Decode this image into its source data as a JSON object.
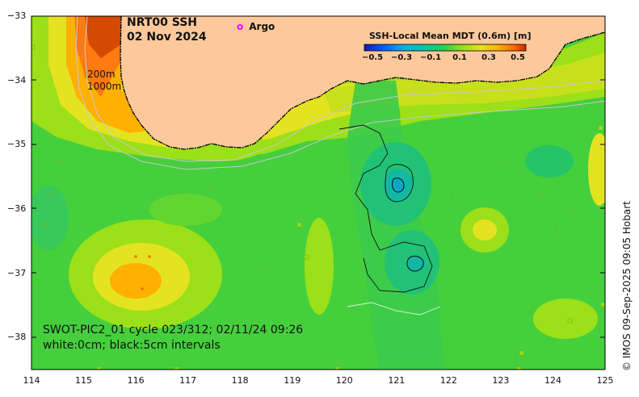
{
  "title": {
    "line1": "NRT00 SSH",
    "line2": "02 Nov 2024"
  },
  "legend": {
    "argo_symbol": "o",
    "argo_label": "Argo",
    "argo_color": "#ff00ff"
  },
  "depth_labels": [
    "200m",
    "1000m"
  ],
  "colorbar": {
    "title": "SSH-Local Mean MDT (0.6m) [m]",
    "ticks": [
      "−0.5",
      "−0.3",
      "−0.1",
      "0.1",
      "0.3",
      "0.5"
    ],
    "colors": [
      "#1a1aa8",
      "#0060ff",
      "#00b4e6",
      "#00c8a0",
      "#30d050",
      "#90e020",
      "#e6e020",
      "#ffb000",
      "#ff7000",
      "#cc2a00"
    ]
  },
  "axes": {
    "x_ticks": [
      "114",
      "115",
      "116",
      "117",
      "118",
      "119",
      "120",
      "121",
      "122",
      "123",
      "124",
      "125"
    ],
    "y_ticks": [
      "−33",
      "−34",
      "−35",
      "−36",
      "−37",
      "−38"
    ],
    "lon_range": [
      114,
      125
    ],
    "lat_range": [
      -38.5,
      -33
    ]
  },
  "swot": {
    "line1": "SWOT-PIC2_01 cycle 023/312; 02/11/24 09:26",
    "line2": "white:0cm; black:5cm intervals"
  },
  "credit": "© IMOS 09-Sep-2025 09:05 Hobart",
  "colors": {
    "land": "#fdc99a",
    "ocean_base": "#45cf3d",
    "coast": "#000000"
  }
}
